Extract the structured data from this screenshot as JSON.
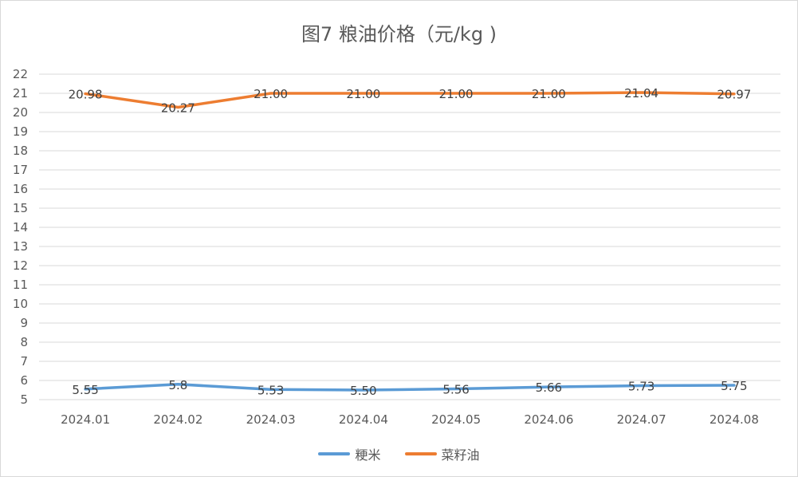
{
  "chart_data": {
    "type": "line",
    "title": "图7  粮油价格（元/kg )",
    "categories": [
      "2024.01",
      "2024.02",
      "2024.03",
      "2024.04",
      "2024.05",
      "2024.06",
      "2024.07",
      "2024.08"
    ],
    "ylim": [
      5,
      22
    ],
    "yticks": [
      5,
      6,
      7,
      8,
      9,
      10,
      11,
      12,
      13,
      14,
      15,
      16,
      17,
      18,
      19,
      20,
      21,
      22
    ],
    "grid": true,
    "legend_position": "bottom",
    "series": [
      {
        "name": "粳米",
        "color": "#5b9bd5",
        "values": [
          5.55,
          5.8,
          5.53,
          5.5,
          5.56,
          5.66,
          5.73,
          5.75
        ],
        "labels": [
          "5.55",
          "5.8",
          "5.53",
          "5.50",
          "5.56",
          "5.66",
          "5.73",
          "5.75"
        ]
      },
      {
        "name": "菜籽油",
        "color": "#ed7d31",
        "values": [
          20.98,
          20.27,
          21.0,
          21.0,
          21.0,
          21.0,
          21.04,
          20.97
        ],
        "labels": [
          "20.98",
          "20.27",
          "21.00",
          "21.00",
          "21.00",
          "21.00",
          "21.04",
          "20.97"
        ]
      }
    ]
  }
}
